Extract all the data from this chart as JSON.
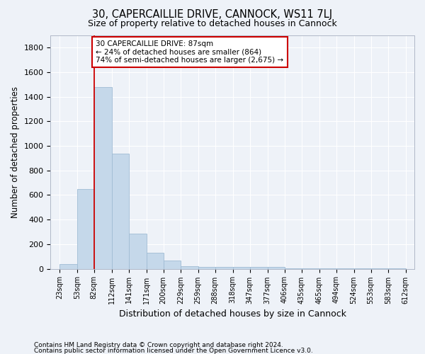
{
  "title1": "30, CAPERCAILLIE DRIVE, CANNOCK, WS11 7LJ",
  "title2": "Size of property relative to detached houses in Cannock",
  "xlabel": "Distribution of detached houses by size in Cannock",
  "ylabel": "Number of detached properties",
  "bar_color": "#c5d8ea",
  "bar_edge_color": "#a0bcd4",
  "vline_color": "#cc0000",
  "vline_x": 82,
  "bins": [
    23,
    53,
    82,
    112,
    141,
    171,
    200,
    229,
    259,
    288,
    318,
    347,
    377,
    406,
    435,
    465,
    494,
    524,
    553,
    583,
    612
  ],
  "heights": [
    40,
    650,
    1480,
    940,
    285,
    130,
    65,
    22,
    15,
    15,
    15,
    15,
    15,
    2,
    2,
    2,
    2,
    2,
    2,
    2
  ],
  "ylim": [
    0,
    1900
  ],
  "yticks": [
    0,
    200,
    400,
    600,
    800,
    1000,
    1200,
    1400,
    1600,
    1800
  ],
  "annotation_text": "30 CAPERCAILLIE DRIVE: 87sqm\n← 24% of detached houses are smaller (864)\n74% of semi-detached houses are larger (2,675) →",
  "footer1": "Contains HM Land Registry data © Crown copyright and database right 2024.",
  "footer2": "Contains public sector information licensed under the Open Government Licence v3.0.",
  "bg_color": "#eef2f8",
  "plot_bg_color": "#eef2f8",
  "grid_color": "#ffffff",
  "annotation_box_color": "#ffffff",
  "annotation_box_edge": "#cc0000",
  "tick_labels": [
    "23sqm",
    "53sqm",
    "82sqm",
    "112sqm",
    "141sqm",
    "171sqm",
    "200sqm",
    "229sqm",
    "259sqm",
    "288sqm",
    "318sqm",
    "347sqm",
    "377sqm",
    "406sqm",
    "435sqm",
    "465sqm",
    "494sqm",
    "524sqm",
    "553sqm",
    "583sqm",
    "612sqm"
  ]
}
